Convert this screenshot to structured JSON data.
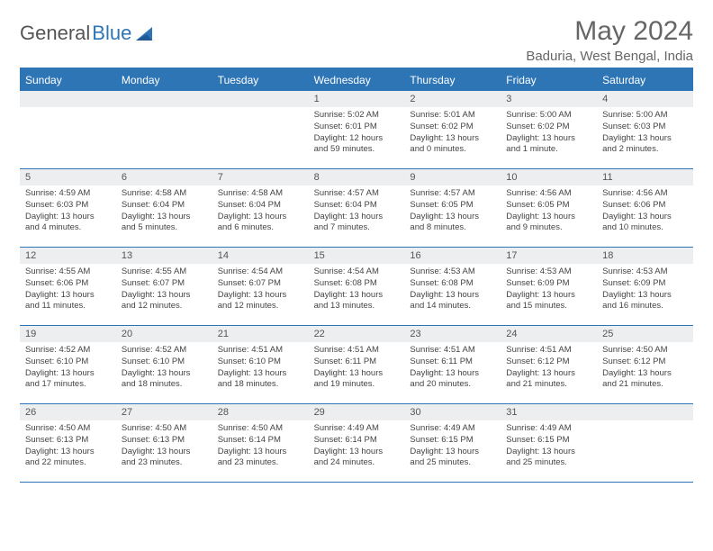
{
  "logo": {
    "text_a": "General",
    "text_b": "Blue"
  },
  "title": "May 2024",
  "location": "Baduria, West Bengal, India",
  "weekdays": [
    "Sunday",
    "Monday",
    "Tuesday",
    "Wednesday",
    "Thursday",
    "Friday",
    "Saturday"
  ],
  "colors": {
    "brand": "#2e75b6",
    "daynum_bg": "#eceeef",
    "text": "#444444",
    "title": "#666666"
  },
  "weeks": [
    [
      {
        "empty": true
      },
      {
        "empty": true
      },
      {
        "empty": true
      },
      {
        "day": "1",
        "sunrise": "Sunrise: 5:02 AM",
        "sunset": "Sunset: 6:01 PM",
        "daylight": "Daylight: 12 hours and 59 minutes."
      },
      {
        "day": "2",
        "sunrise": "Sunrise: 5:01 AM",
        "sunset": "Sunset: 6:02 PM",
        "daylight": "Daylight: 13 hours and 0 minutes."
      },
      {
        "day": "3",
        "sunrise": "Sunrise: 5:00 AM",
        "sunset": "Sunset: 6:02 PM",
        "daylight": "Daylight: 13 hours and 1 minute."
      },
      {
        "day": "4",
        "sunrise": "Sunrise: 5:00 AM",
        "sunset": "Sunset: 6:03 PM",
        "daylight": "Daylight: 13 hours and 2 minutes."
      }
    ],
    [
      {
        "day": "5",
        "sunrise": "Sunrise: 4:59 AM",
        "sunset": "Sunset: 6:03 PM",
        "daylight": "Daylight: 13 hours and 4 minutes."
      },
      {
        "day": "6",
        "sunrise": "Sunrise: 4:58 AM",
        "sunset": "Sunset: 6:04 PM",
        "daylight": "Daylight: 13 hours and 5 minutes."
      },
      {
        "day": "7",
        "sunrise": "Sunrise: 4:58 AM",
        "sunset": "Sunset: 6:04 PM",
        "daylight": "Daylight: 13 hours and 6 minutes."
      },
      {
        "day": "8",
        "sunrise": "Sunrise: 4:57 AM",
        "sunset": "Sunset: 6:04 PM",
        "daylight": "Daylight: 13 hours and 7 minutes."
      },
      {
        "day": "9",
        "sunrise": "Sunrise: 4:57 AM",
        "sunset": "Sunset: 6:05 PM",
        "daylight": "Daylight: 13 hours and 8 minutes."
      },
      {
        "day": "10",
        "sunrise": "Sunrise: 4:56 AM",
        "sunset": "Sunset: 6:05 PM",
        "daylight": "Daylight: 13 hours and 9 minutes."
      },
      {
        "day": "11",
        "sunrise": "Sunrise: 4:56 AM",
        "sunset": "Sunset: 6:06 PM",
        "daylight": "Daylight: 13 hours and 10 minutes."
      }
    ],
    [
      {
        "day": "12",
        "sunrise": "Sunrise: 4:55 AM",
        "sunset": "Sunset: 6:06 PM",
        "daylight": "Daylight: 13 hours and 11 minutes."
      },
      {
        "day": "13",
        "sunrise": "Sunrise: 4:55 AM",
        "sunset": "Sunset: 6:07 PM",
        "daylight": "Daylight: 13 hours and 12 minutes."
      },
      {
        "day": "14",
        "sunrise": "Sunrise: 4:54 AM",
        "sunset": "Sunset: 6:07 PM",
        "daylight": "Daylight: 13 hours and 12 minutes."
      },
      {
        "day": "15",
        "sunrise": "Sunrise: 4:54 AM",
        "sunset": "Sunset: 6:08 PM",
        "daylight": "Daylight: 13 hours and 13 minutes."
      },
      {
        "day": "16",
        "sunrise": "Sunrise: 4:53 AM",
        "sunset": "Sunset: 6:08 PM",
        "daylight": "Daylight: 13 hours and 14 minutes."
      },
      {
        "day": "17",
        "sunrise": "Sunrise: 4:53 AM",
        "sunset": "Sunset: 6:09 PM",
        "daylight": "Daylight: 13 hours and 15 minutes."
      },
      {
        "day": "18",
        "sunrise": "Sunrise: 4:53 AM",
        "sunset": "Sunset: 6:09 PM",
        "daylight": "Daylight: 13 hours and 16 minutes."
      }
    ],
    [
      {
        "day": "19",
        "sunrise": "Sunrise: 4:52 AM",
        "sunset": "Sunset: 6:10 PM",
        "daylight": "Daylight: 13 hours and 17 minutes."
      },
      {
        "day": "20",
        "sunrise": "Sunrise: 4:52 AM",
        "sunset": "Sunset: 6:10 PM",
        "daylight": "Daylight: 13 hours and 18 minutes."
      },
      {
        "day": "21",
        "sunrise": "Sunrise: 4:51 AM",
        "sunset": "Sunset: 6:10 PM",
        "daylight": "Daylight: 13 hours and 18 minutes."
      },
      {
        "day": "22",
        "sunrise": "Sunrise: 4:51 AM",
        "sunset": "Sunset: 6:11 PM",
        "daylight": "Daylight: 13 hours and 19 minutes."
      },
      {
        "day": "23",
        "sunrise": "Sunrise: 4:51 AM",
        "sunset": "Sunset: 6:11 PM",
        "daylight": "Daylight: 13 hours and 20 minutes."
      },
      {
        "day": "24",
        "sunrise": "Sunrise: 4:51 AM",
        "sunset": "Sunset: 6:12 PM",
        "daylight": "Daylight: 13 hours and 21 minutes."
      },
      {
        "day": "25",
        "sunrise": "Sunrise: 4:50 AM",
        "sunset": "Sunset: 6:12 PM",
        "daylight": "Daylight: 13 hours and 21 minutes."
      }
    ],
    [
      {
        "day": "26",
        "sunrise": "Sunrise: 4:50 AM",
        "sunset": "Sunset: 6:13 PM",
        "daylight": "Daylight: 13 hours and 22 minutes."
      },
      {
        "day": "27",
        "sunrise": "Sunrise: 4:50 AM",
        "sunset": "Sunset: 6:13 PM",
        "daylight": "Daylight: 13 hours and 23 minutes."
      },
      {
        "day": "28",
        "sunrise": "Sunrise: 4:50 AM",
        "sunset": "Sunset: 6:14 PM",
        "daylight": "Daylight: 13 hours and 23 minutes."
      },
      {
        "day": "29",
        "sunrise": "Sunrise: 4:49 AM",
        "sunset": "Sunset: 6:14 PM",
        "daylight": "Daylight: 13 hours and 24 minutes."
      },
      {
        "day": "30",
        "sunrise": "Sunrise: 4:49 AM",
        "sunset": "Sunset: 6:15 PM",
        "daylight": "Daylight: 13 hours and 25 minutes."
      },
      {
        "day": "31",
        "sunrise": "Sunrise: 4:49 AM",
        "sunset": "Sunset: 6:15 PM",
        "daylight": "Daylight: 13 hours and 25 minutes."
      },
      {
        "empty": true
      }
    ]
  ]
}
